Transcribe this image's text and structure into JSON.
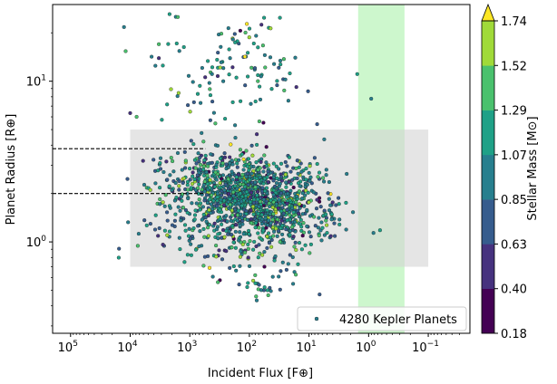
{
  "chart_data": {
    "type": "scatter",
    "title": "",
    "xlabel": "Incident Flux [F⊕]",
    "ylabel": "Planet Radius [R⊕]",
    "x_scale": "log",
    "y_scale": "log",
    "x_inverted": true,
    "xlim": [
      200000,
      0.02
    ],
    "ylim": [
      0.27,
      30
    ],
    "x_ticks": [
      {
        "value": 100000,
        "base": "10",
        "exp": "5"
      },
      {
        "value": 10000,
        "base": "10",
        "exp": "4"
      },
      {
        "value": 1000,
        "base": "10",
        "exp": "3"
      },
      {
        "value": 100,
        "base": "10",
        "exp": "2"
      },
      {
        "value": 10,
        "base": "10",
        "exp": "1"
      },
      {
        "value": 1,
        "base": "10",
        "exp": "0"
      },
      {
        "value": 0.1,
        "base": "10",
        "exp": "−1"
      }
    ],
    "y_ticks": [
      {
        "value": 1,
        "base": "10",
        "exp": "0"
      },
      {
        "value": 10,
        "base": "10",
        "exp": "1"
      }
    ],
    "grid": false,
    "legend": {
      "position": "bottom-right",
      "label": "4280 Kepler Planets"
    },
    "series": [
      {
        "name": "4280 Kepler Planets",
        "count": 4280,
        "marker": "circle",
        "edgecolor": "#1a1a1a"
      }
    ],
    "colorbar": {
      "label": "Stellar Mass [M⊙]",
      "tick_labels": [
        "0.18",
        "0.40",
        "0.63",
        "0.85",
        "1.07",
        "1.29",
        "1.52",
        "1.74"
      ],
      "colors": [
        "#440154",
        "#46327e",
        "#365c8d",
        "#277f8e",
        "#1fa187",
        "#4ac16d",
        "#a0da39"
      ],
      "extend_color": "#fde725",
      "extend": "max"
    },
    "regions": [
      {
        "kind": "x_band",
        "color": "#90ee90",
        "x_range": [
          1.5,
          0.25
        ]
      },
      {
        "kind": "rect",
        "color": "#d3d3d3",
        "x_range": [
          10000,
          0.1
        ],
        "y_range": [
          0.7,
          5.0
        ]
      }
    ],
    "reference_lines": [
      {
        "style": "dashed",
        "y": 3.8,
        "x_range": [
          200000,
          550
        ]
      },
      {
        "style": "dashed",
        "y": 2.0,
        "x_range": [
          200000,
          550
        ]
      }
    ],
    "points_summary": {
      "main_cluster": {
        "x_range": [
          10000,
          0.1
        ],
        "y_range": [
          0.7,
          5.0
        ],
        "densest_x": [
          2000,
          20
        ],
        "densest_y": [
          1.3,
          3.5
        ]
      },
      "giants": {
        "x_range": [
          20000,
          1
        ],
        "y_range": [
          6,
          30
        ]
      },
      "small_planets": {
        "x_range": [
          3000,
          5
        ],
        "y_range": [
          0.3,
          0.9
        ]
      }
    }
  }
}
